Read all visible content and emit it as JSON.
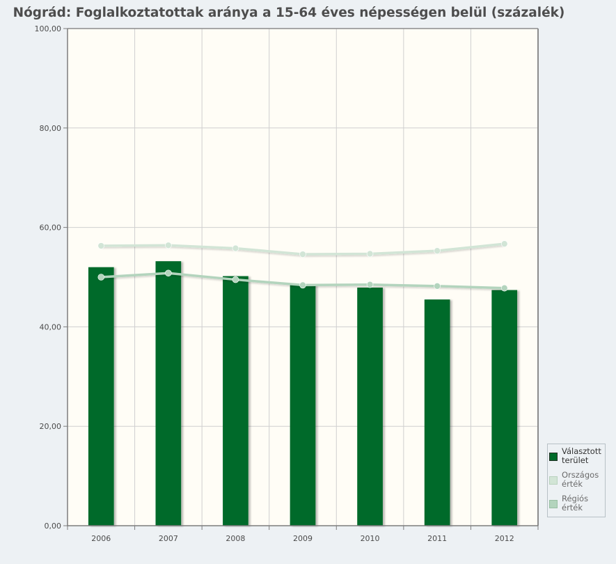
{
  "chart_data": {
    "type": "bar",
    "title": "Nógrád: Foglalkoztatottak aránya a 15-64 éves népességen belül (százalék)",
    "xlabel": "",
    "ylabel": "",
    "categories": [
      "2006",
      "2007",
      "2008",
      "2009",
      "2010",
      "2011",
      "2012"
    ],
    "ylim": [
      0,
      100
    ],
    "yticks": [
      "0,00",
      "20,00",
      "40,00",
      "60,00",
      "80,00",
      "100,00"
    ],
    "grid": true,
    "legend_position": "bottom-right",
    "series": [
      {
        "name": "Választott terület",
        "type": "bar",
        "color": "#006b2a",
        "values": [
          52.0,
          53.2,
          50.2,
          48.4,
          47.9,
          45.5,
          47.4
        ]
      },
      {
        "name": "Országos érték",
        "type": "line",
        "color": "#d2e5d6",
        "values": [
          56.3,
          56.4,
          55.8,
          54.6,
          54.7,
          55.3,
          56.7
        ]
      },
      {
        "name": "Régiós érték",
        "type": "line",
        "color": "#b3d4bd",
        "values": [
          50.0,
          50.8,
          49.5,
          48.4,
          48.5,
          48.2,
          47.8
        ]
      }
    ]
  },
  "colors": {
    "page_background": "#edf1f4",
    "plot_background": "#fffdf6",
    "gridline": "#cfcfcf",
    "axis": "#7d7d7d"
  }
}
